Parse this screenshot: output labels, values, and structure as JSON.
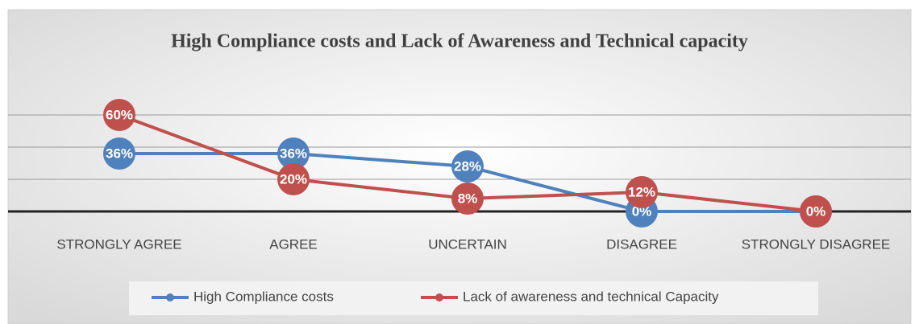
{
  "chart_data": {
    "type": "line",
    "title": "High Compliance costs and Lack of Awareness and Technical capacity",
    "categories": [
      "STRONGLY AGREE",
      "AGREE",
      "UNCERTAIN",
      "DISAGREE",
      "STRONGLY DISAGREE"
    ],
    "series": [
      {
        "name": "High Compliance costs",
        "color": "#4f81bd",
        "values": [
          36,
          36,
          28,
          0,
          0
        ],
        "value_labels": [
          "36%",
          "36%",
          "28%",
          "0%",
          "0%"
        ]
      },
      {
        "name": "Lack of awareness and technical Capacity",
        "color": "#c0504d",
        "values": [
          60,
          20,
          8,
          12,
          0
        ],
        "value_labels": [
          "60%",
          "20%",
          "8%",
          "12%",
          "0%"
        ]
      }
    ],
    "ylim": [
      0,
      80
    ],
    "yticks": [
      0,
      20,
      40,
      60
    ],
    "grid": true,
    "legend": "bottom"
  }
}
